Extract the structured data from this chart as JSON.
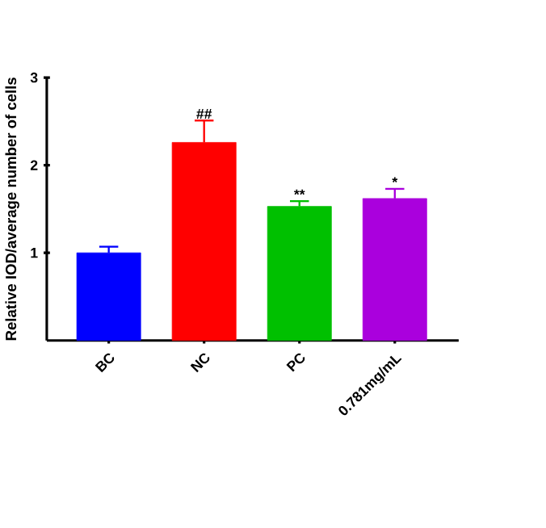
{
  "chart_data": {
    "type": "bar",
    "ylabel": "Relative IOD/average number of cells",
    "categories": [
      "BC",
      "NC",
      "PC",
      "0.781mg/mL"
    ],
    "values": [
      1.0,
      2.26,
      1.53,
      1.62
    ],
    "errors": [
      0.07,
      0.25,
      0.06,
      0.11
    ],
    "colors": [
      "#0000ff",
      "#ff0000",
      "#00c000",
      "#aa00dd"
    ],
    "ylim": [
      0,
      3
    ],
    "yticks": [
      1,
      2,
      3
    ],
    "annotations": [
      {
        "text": "##",
        "x": "NC",
        "y": 2.51
      },
      {
        "text": "**",
        "x": "PC",
        "y": 1.59
      },
      {
        "text": "*",
        "x": "0.781mg/mL",
        "y": 1.73
      }
    ]
  }
}
